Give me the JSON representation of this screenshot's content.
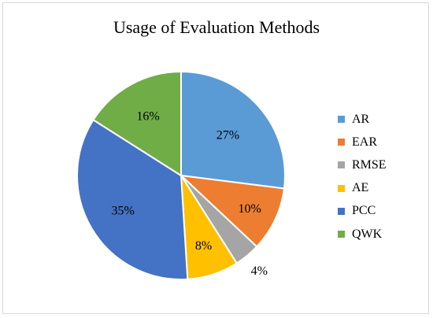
{
  "chart_data": {
    "type": "pie",
    "title": "Usage of Evaluation Methods",
    "categories": [
      "AR",
      "EAR",
      "RMSE",
      "AE",
      "PCC",
      "QWK"
    ],
    "values": [
      27,
      10,
      4,
      8,
      35,
      16
    ],
    "labels": [
      "27%",
      "10%",
      "4%",
      "8%",
      "35%",
      "16%"
    ],
    "colors": [
      "#5b9bd5",
      "#ed7d31",
      "#a5a5a5",
      "#ffc000",
      "#4472c4",
      "#70ad47"
    ],
    "legend": "right"
  }
}
